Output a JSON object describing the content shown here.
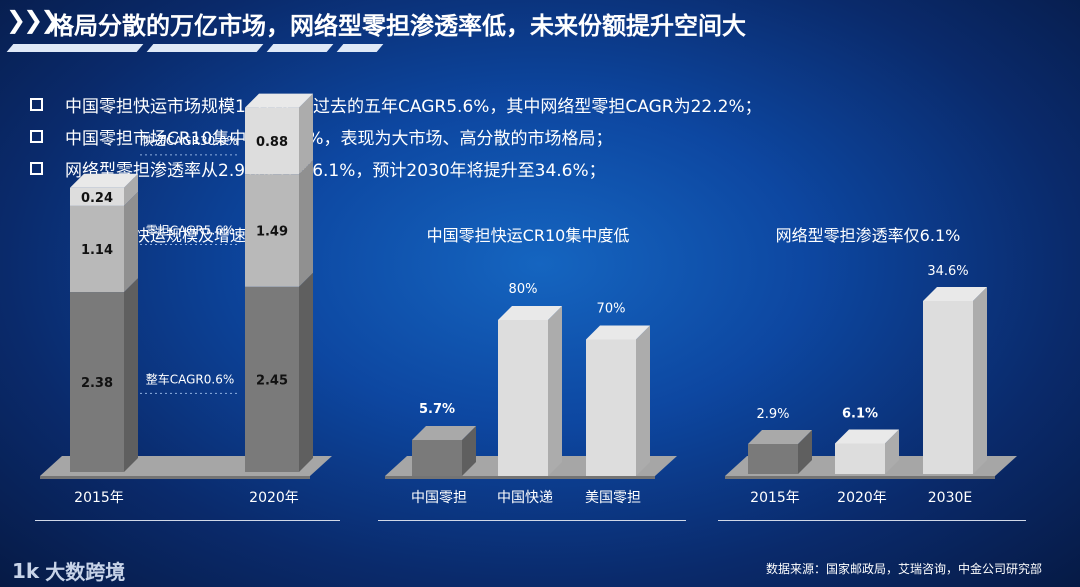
{
  "header": {
    "title": "格局分散的万亿市场，网络型零担渗透率低，未来份额提升空间大"
  },
  "bullets": [
    "中国零担快运市场规模1.5万亿，过去的五年CAGR5.6%，其中网络型零担CAGR为22.2%；",
    "中国零担市场CR10集中度仅5.7%，表现为大市场、高分散的市场格局；",
    "网络型零担渗透率从2.9%提升至6.1%，预计2030年将提升至34.6%；"
  ],
  "colors": {
    "dark_bar": "#7a7a7a",
    "mid_bar": "#b9b9b9",
    "light_bar": "#dddddd",
    "floor": "#a6a6a6"
  },
  "chart_data": [
    {
      "type": "bar",
      "stacked": true,
      "title": "中国零担快运规模及增速（万亿）",
      "categories": [
        "2015年",
        "2020年"
      ],
      "series": [
        {
          "name": "整车CAGR0.6%",
          "values": [
            2.38,
            2.45
          ]
        },
        {
          "name": "零担CAGR5.6%",
          "values": [
            1.14,
            1.49
          ]
        },
        {
          "name": "快递CAGR30.0%",
          "values": [
            0.24,
            0.88
          ]
        }
      ],
      "value_labels": [
        [
          "2.38",
          "2.45"
        ],
        [
          "1.14",
          "1.49"
        ],
        [
          "0.24",
          "0.88"
        ]
      ]
    },
    {
      "type": "bar",
      "title": "中国零担快运CR10集中度低",
      "categories": [
        "中国零担",
        "中国快递",
        "美国零担"
      ],
      "values": [
        5.7,
        80,
        70
      ],
      "value_labels": [
        "5.7%",
        "80%",
        "70%"
      ]
    },
    {
      "type": "bar",
      "title": "网络型零担渗透率仅6.1%",
      "categories": [
        "2015年",
        "2020年",
        "2030E"
      ],
      "values": [
        2.9,
        6.1,
        34.6
      ],
      "value_labels": [
        "2.9%",
        "6.1%",
        "34.6%"
      ]
    }
  ],
  "footer": {
    "logo_mark": "1k",
    "logo_text": "大数跨境",
    "source": "数据来源：国家邮政局，艾瑞咨询，中金公司研究部"
  }
}
